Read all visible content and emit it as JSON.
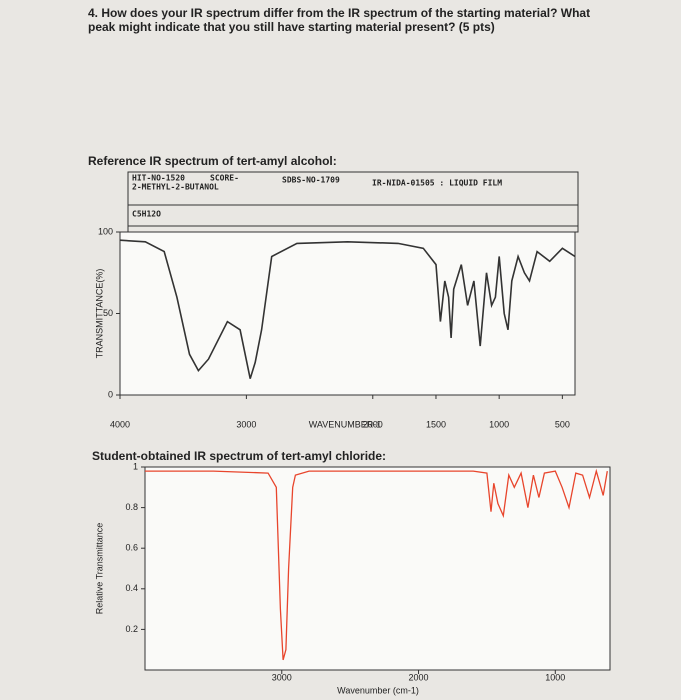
{
  "question": {
    "text": "4. How does your IR spectrum differ from the IR spectrum of the starting material? What peak might indicate that you still have starting material present? (5 pts)"
  },
  "chart_data": [
    {
      "type": "line",
      "title": "Reference IR spectrum of tert-amyl alcohol:",
      "annotations": [
        "HIT-NO-1520",
        "SCORE-",
        "SDBS-NO-1709",
        "IR-NIDA-01505 : LIQUID FILM",
        "2-METHYL-2-BUTANOL",
        "C5H12O"
      ],
      "xlabel": "WAVENUMBER-1",
      "ylabel": "TRANSMITTANCE(%)",
      "x": [
        4000,
        3800,
        3650,
        3550,
        3450,
        3380,
        3300,
        3150,
        3050,
        2970,
        2930,
        2880,
        2800,
        2600,
        2200,
        1800,
        1600,
        1500,
        1465,
        1430,
        1400,
        1380,
        1360,
        1300,
        1250,
        1200,
        1150,
        1100,
        1060,
        1030,
        1000,
        960,
        930,
        900,
        850,
        800,
        760,
        700,
        600,
        500,
        400
      ],
      "values": [
        95,
        94,
        88,
        60,
        25,
        15,
        22,
        45,
        40,
        10,
        20,
        40,
        85,
        93,
        94,
        93,
        90,
        80,
        45,
        70,
        60,
        35,
        65,
        80,
        55,
        70,
        30,
        75,
        55,
        60,
        85,
        50,
        40,
        70,
        85,
        75,
        70,
        88,
        82,
        90,
        85
      ],
      "color": "#333333",
      "xlim": [
        4000,
        400
      ],
      "ylim": [
        0,
        100
      ],
      "xticks": [
        4000,
        3000,
        2000,
        1500,
        1000,
        500
      ],
      "yticks": [
        0,
        50,
        100
      ]
    },
    {
      "type": "line",
      "title": "Student-obtained IR spectrum of tert-amyl chloride:",
      "xlabel": "Wavenumber (cm-1)",
      "ylabel": "Relative Transmittance",
      "x": [
        4000,
        3500,
        3100,
        3040,
        3010,
        2990,
        2970,
        2950,
        2920,
        2900,
        2800,
        2400,
        2000,
        1600,
        1500,
        1470,
        1450,
        1420,
        1380,
        1340,
        1300,
        1250,
        1200,
        1160,
        1120,
        1080,
        1000,
        950,
        900,
        850,
        800,
        750,
        700,
        650,
        620
      ],
      "values": [
        0.98,
        0.98,
        0.97,
        0.9,
        0.3,
        0.05,
        0.1,
        0.5,
        0.9,
        0.96,
        0.98,
        0.98,
        0.98,
        0.98,
        0.97,
        0.78,
        0.92,
        0.82,
        0.76,
        0.96,
        0.9,
        0.97,
        0.8,
        0.96,
        0.85,
        0.97,
        0.98,
        0.9,
        0.8,
        0.97,
        0.96,
        0.85,
        0.98,
        0.86,
        0.98
      ],
      "color": "#e8452c",
      "xlim": [
        4000,
        600
      ],
      "ylim": [
        0,
        1
      ],
      "xticks": [
        3000,
        2000,
        1000
      ],
      "yticks": [
        0.2,
        0.4,
        0.6,
        0.8,
        1
      ]
    }
  ]
}
